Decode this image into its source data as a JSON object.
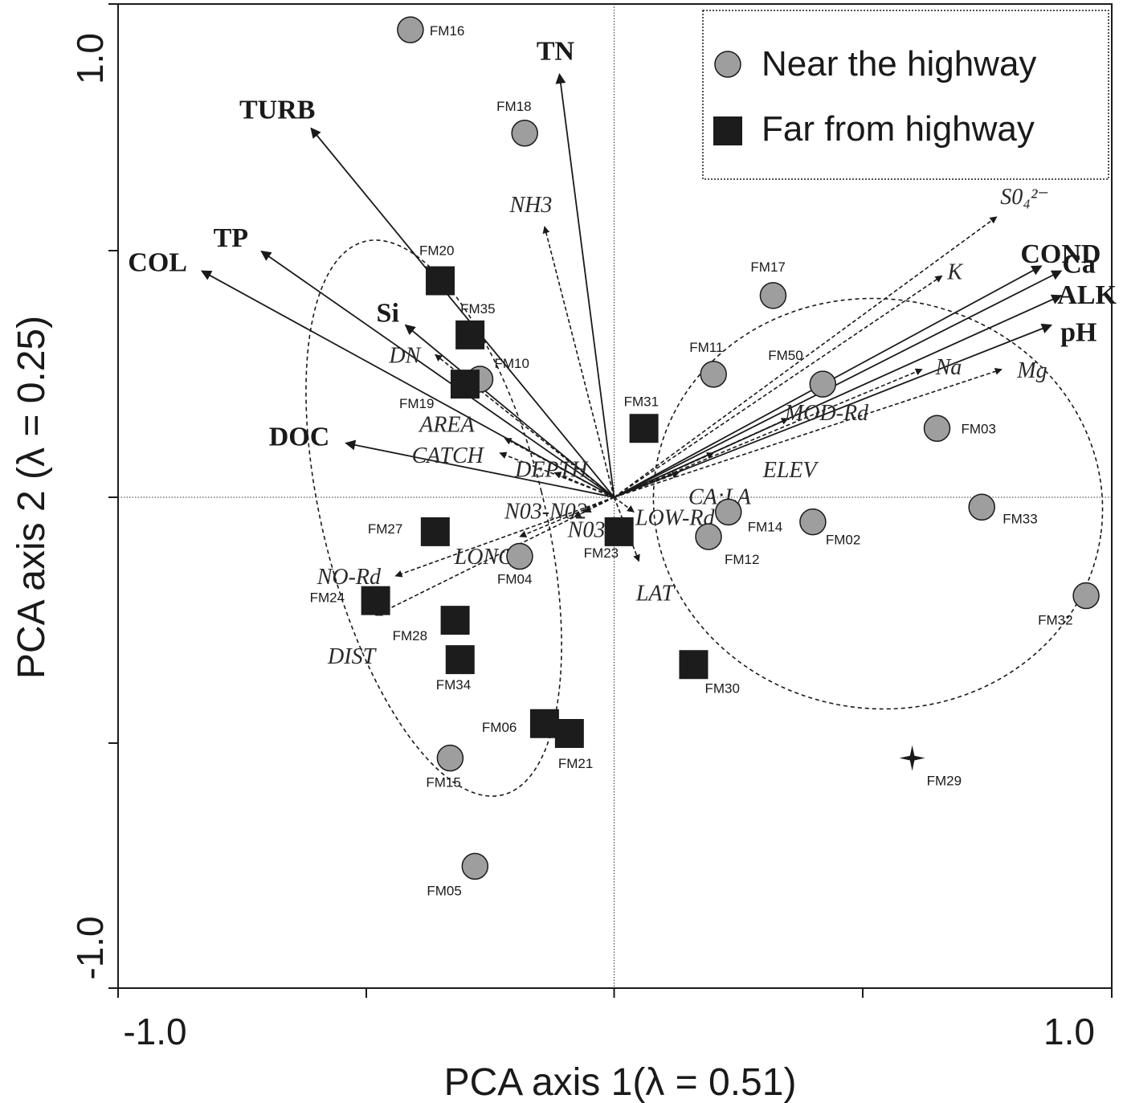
{
  "colors": {
    "near_fill": "#9e9e9e",
    "far_fill": "#1c1c1c",
    "ink": "#1a1a1a"
  },
  "chart_data": {
    "type": "scatter",
    "title": "",
    "xlabel": "PCA axis 1(λ = 0.51)",
    "ylabel": "PCA axis 2 (λ = 0.25)",
    "xlim": [
      -1.0,
      1.0
    ],
    "ylim": [
      -1.0,
      1.0
    ],
    "x_tick_labels": [
      "-1.0",
      "1.0"
    ],
    "y_tick_labels": [
      "-1.0",
      "1.0"
    ],
    "grid": false,
    "zero_lines": true,
    "legend_position": "top-right",
    "legend": [
      {
        "label": "Near the highway",
        "marker": "circle"
      },
      {
        "label": "Far from highway",
        "marker": "square"
      }
    ],
    "series": [
      {
        "name": "Near the highway",
        "marker": "circle",
        "points": [
          {
            "label": "FM16",
            "x": -0.41,
            "y": 0.95
          },
          {
            "label": "FM18",
            "x": -0.18,
            "y": 0.74
          },
          {
            "label": "FM10",
            "x": -0.27,
            "y": 0.24
          },
          {
            "label": "FM17",
            "x": 0.32,
            "y": 0.41
          },
          {
            "label": "FM11",
            "x": 0.2,
            "y": 0.25
          },
          {
            "label": "FM50",
            "x": 0.42,
            "y": 0.23
          },
          {
            "label": "FM03",
            "x": 0.65,
            "y": 0.14
          },
          {
            "label": "FM33",
            "x": 0.74,
            "y": -0.02
          },
          {
            "label": "FM32",
            "x": 0.95,
            "y": -0.2
          },
          {
            "label": "FM14",
            "x": 0.23,
            "y": -0.03
          },
          {
            "label": "FM02",
            "x": 0.4,
            "y": -0.05
          },
          {
            "label": "FM12",
            "x": 0.19,
            "y": -0.08
          },
          {
            "label": "FM04",
            "x": -0.19,
            "y": -0.12
          },
          {
            "label": "FM15",
            "x": -0.33,
            "y": -0.53
          },
          {
            "label": "FM05",
            "x": -0.28,
            "y": -0.75
          }
        ]
      },
      {
        "name": "Far from highway",
        "marker": "square",
        "points": [
          {
            "label": "FM20",
            "x": -0.35,
            "y": 0.44
          },
          {
            "label": "FM35",
            "x": -0.29,
            "y": 0.33
          },
          {
            "label": "FM19",
            "x": -0.3,
            "y": 0.23
          },
          {
            "label": "FM31",
            "x": 0.06,
            "y": 0.14
          },
          {
            "label": "FM27",
            "x": -0.36,
            "y": -0.07
          },
          {
            "label": "FM23",
            "x": 0.01,
            "y": -0.07
          },
          {
            "label": "FM24",
            "x": -0.48,
            "y": -0.21
          },
          {
            "label": "FM28",
            "x": -0.32,
            "y": -0.25
          },
          {
            "label": "FM34",
            "x": -0.31,
            "y": -0.33
          },
          {
            "label": "FM30",
            "x": 0.16,
            "y": -0.34
          },
          {
            "label": "FM06",
            "x": -0.14,
            "y": -0.46
          },
          {
            "label": "FM21",
            "x": -0.09,
            "y": -0.48
          }
        ]
      },
      {
        "name": "",
        "marker": "star",
        "points": [
          {
            "label": "FM29",
            "x": 0.6,
            "y": -0.53
          }
        ]
      }
    ],
    "vectors_solid": [
      {
        "label": "TN",
        "x": -0.11,
        "y": 0.86
      },
      {
        "label": "TURB",
        "x": -0.61,
        "y": 0.75
      },
      {
        "label": "TP",
        "x": -0.71,
        "y": 0.5
      },
      {
        "label": "COL",
        "x": -0.83,
        "y": 0.46
      },
      {
        "label": "Si",
        "x": -0.42,
        "y": 0.35
      },
      {
        "label": "DOC",
        "x": -0.54,
        "y": 0.11
      },
      {
        "label": "COND",
        "x": 0.86,
        "y": 0.47
      },
      {
        "label": "Ca",
        "x": 0.9,
        "y": 0.46
      },
      {
        "label": "ALK",
        "x": 0.9,
        "y": 0.41
      },
      {
        "label": "pH",
        "x": 0.88,
        "y": 0.35
      }
    ],
    "vectors_dashed": [
      {
        "label": "NH3",
        "x": -0.14,
        "y": 0.55
      },
      {
        "label": "DN",
        "x": -0.36,
        "y": 0.29
      },
      {
        "label": "AREA",
        "x": -0.22,
        "y": 0.12
      },
      {
        "label": "CATCH",
        "x": -0.23,
        "y": 0.09
      },
      {
        "label": "DEPTH",
        "x": -0.12,
        "y": 0.05
      },
      {
        "label": "S0₄²⁻",
        "x": 0.77,
        "y": 0.57
      },
      {
        "label": "K",
        "x": 0.66,
        "y": 0.45
      },
      {
        "label": "Na",
        "x": 0.62,
        "y": 0.26
      },
      {
        "label": "Mg",
        "x": 0.78,
        "y": 0.26
      },
      {
        "label": "MOD-Rd",
        "x": 0.35,
        "y": 0.16
      },
      {
        "label": "ELEV",
        "x": 0.2,
        "y": 0.09
      },
      {
        "label": "CA:LA",
        "x": 0.13,
        "y": 0.05
      },
      {
        "label": "LOW-Rd",
        "x": 0.04,
        "y": -0.03
      },
      {
        "label": "LAT",
        "x": 0.05,
        "y": -0.13
      },
      {
        "label": "N03-N02",
        "x": -0.06,
        "y": -0.03
      },
      {
        "label": "N03",
        "x": -0.08,
        "y": -0.04
      },
      {
        "label": "LONG",
        "x": -0.19,
        "y": -0.08
      },
      {
        "label": "NO-Rd",
        "x": -0.44,
        "y": -0.16
      },
      {
        "label": "DIST",
        "x": -0.48,
        "y": -0.24
      }
    ]
  }
}
